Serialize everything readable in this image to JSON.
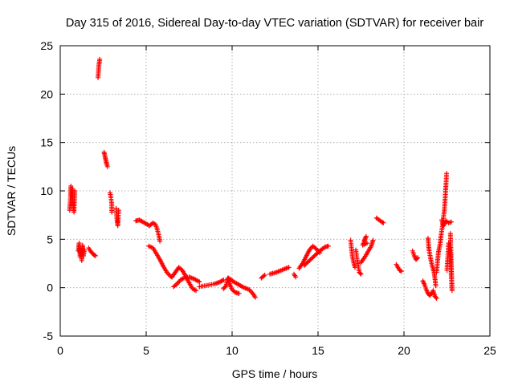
{
  "chart_data": {
    "type": "scatter",
    "title": "Day 315 of 2016, Sidereal Day-to-day VTEC variation (SDTVAR) for receiver bair",
    "xlabel": "GPS time / hours",
    "ylabel": "SDTVAR / TECUs",
    "xlim": [
      0,
      25
    ],
    "ylim": [
      -5,
      25
    ],
    "xticks": [
      "0",
      "5",
      "10",
      "15",
      "20",
      "25"
    ],
    "yticks": [
      "-5",
      "0",
      "5",
      "10",
      "15",
      "20",
      "25"
    ],
    "grid": true,
    "marker": "plus",
    "series": [
      {
        "name": "SDTVAR",
        "color": "#ff0000",
        "segments": [
          [
            [
              0.55,
              8.0
            ],
            [
              0.6,
              9.5
            ],
            [
              0.62,
              10.5
            ],
            [
              0.65,
              10.0
            ],
            [
              0.68,
              9.0
            ],
            [
              0.72,
              10.2
            ],
            [
              0.75,
              8.6
            ],
            [
              0.8,
              7.8
            ],
            [
              0.85,
              10.0
            ]
          ],
          [
            [
              1.05,
              3.8
            ],
            [
              1.1,
              4.6
            ],
            [
              1.15,
              3.2
            ],
            [
              1.2,
              4.0
            ],
            [
              1.25,
              2.8
            ],
            [
              1.3,
              4.4
            ],
            [
              1.35,
              3.3
            ],
            [
              1.4,
              3.9
            ]
          ],
          [
            [
              1.65,
              4.1
            ],
            [
              1.75,
              3.8
            ],
            [
              1.85,
              3.6
            ],
            [
              1.95,
              3.4
            ],
            [
              2.05,
              3.3
            ]
          ],
          [
            [
              2.2,
              21.7
            ],
            [
              2.25,
              23.0
            ],
            [
              2.3,
              23.6
            ]
          ],
          [
            [
              2.55,
              14.0
            ],
            [
              2.6,
              13.6
            ],
            [
              2.65,
              13.2
            ],
            [
              2.7,
              12.8
            ],
            [
              2.75,
              12.5
            ]
          ],
          [
            [
              2.9,
              9.8
            ],
            [
              2.95,
              9.3
            ],
            [
              3.0,
              8.6
            ],
            [
              3.0,
              7.8
            ]
          ],
          [
            [
              3.25,
              8.2
            ],
            [
              3.3,
              7.0
            ],
            [
              3.35,
              6.4
            ],
            [
              3.4,
              8.0
            ]
          ],
          [
            [
              4.4,
              6.9
            ],
            [
              4.6,
              7.0
            ],
            [
              4.8,
              6.8
            ],
            [
              5.0,
              6.6
            ],
            [
              5.2,
              6.4
            ],
            [
              5.4,
              6.7
            ],
            [
              5.55,
              6.5
            ],
            [
              5.65,
              6.0
            ],
            [
              5.75,
              5.3
            ],
            [
              5.8,
              4.8
            ]
          ],
          [
            [
              5.15,
              4.3
            ],
            [
              5.4,
              4.1
            ],
            [
              5.6,
              3.5
            ],
            [
              5.8,
              2.9
            ],
            [
              6.0,
              2.2
            ],
            [
              6.2,
              1.6
            ],
            [
              6.4,
              1.2
            ],
            [
              6.5,
              1.1
            ]
          ],
          [
            [
              6.5,
              1.1
            ],
            [
              6.7,
              1.6
            ],
            [
              6.9,
              2.1
            ],
            [
              7.1,
              1.8
            ],
            [
              7.3,
              1.2
            ],
            [
              7.5,
              0.5
            ],
            [
              7.7,
              -0.1
            ],
            [
              7.9,
              -0.3
            ]
          ],
          [
            [
              6.6,
              0.1
            ],
            [
              6.8,
              0.4
            ],
            [
              7.0,
              0.8
            ],
            [
              7.2,
              1.0
            ],
            [
              7.5,
              1.1
            ],
            [
              7.8,
              0.9
            ],
            [
              8.1,
              0.6
            ]
          ],
          [
            [
              8.1,
              0.1
            ],
            [
              8.4,
              0.2
            ],
            [
              8.7,
              0.3
            ],
            [
              9.0,
              0.4
            ],
            [
              9.3,
              0.6
            ],
            [
              9.5,
              0.8
            ]
          ],
          [
            [
              9.5,
              -0.1
            ],
            [
              9.65,
              0.2
            ],
            [
              9.75,
              1.0
            ],
            [
              9.85,
              0.4
            ],
            [
              10.0,
              -0.2
            ],
            [
              10.2,
              -0.5
            ],
            [
              10.4,
              -0.6
            ]
          ],
          [
            [
              9.8,
              1.0
            ],
            [
              10.1,
              0.6
            ],
            [
              10.4,
              0.3
            ],
            [
              10.7,
              0.0
            ],
            [
              11.0,
              -0.2
            ],
            [
              11.2,
              -0.6
            ],
            [
              11.35,
              -1.0
            ]
          ],
          [
            [
              11.7,
              1.0
            ],
            [
              11.9,
              1.3
            ]
          ],
          [
            [
              12.2,
              1.4
            ],
            [
              12.6,
              1.6
            ],
            [
              13.0,
              1.9
            ],
            [
              13.3,
              2.1
            ]
          ],
          [
            [
              13.6,
              1.4
            ],
            [
              13.7,
              1.1
            ]
          ],
          [
            [
              13.9,
              2.0
            ],
            [
              14.1,
              2.5
            ],
            [
              14.3,
              3.2
            ],
            [
              14.5,
              3.9
            ],
            [
              14.7,
              4.3
            ],
            [
              14.9,
              4.0
            ],
            [
              15.1,
              3.6
            ]
          ],
          [
            [
              14.2,
              2.3
            ],
            [
              14.5,
              2.8
            ],
            [
              14.8,
              3.3
            ],
            [
              15.1,
              3.8
            ],
            [
              15.4,
              4.2
            ],
            [
              15.6,
              4.3
            ]
          ],
          [
            [
              16.9,
              4.9
            ],
            [
              16.95,
              4.0
            ],
            [
              17.0,
              3.2
            ],
            [
              17.1,
              2.4
            ],
            [
              17.15,
              2.1
            ]
          ],
          [
            [
              17.2,
              3.9
            ],
            [
              17.25,
              3.2
            ],
            [
              17.4,
              1.6
            ],
            [
              17.5,
              1.4
            ]
          ],
          [
            [
              17.5,
              2.6
            ],
            [
              17.7,
              3.1
            ],
            [
              17.9,
              3.7
            ],
            [
              18.1,
              4.3
            ],
            [
              18.2,
              4.9
            ]
          ],
          [
            [
              17.7,
              4.9
            ],
            [
              17.8,
              5.3
            ],
            [
              17.6,
              4.4
            ],
            [
              17.85,
              4.6
            ]
          ],
          [
            [
              18.4,
              7.2
            ],
            [
              18.55,
              7.0
            ],
            [
              18.7,
              6.8
            ],
            [
              18.8,
              6.7
            ]
          ],
          [
            [
              19.55,
              2.4
            ],
            [
              19.65,
              2.1
            ],
            [
              19.75,
              1.8
            ],
            [
              19.85,
              1.7
            ]
          ],
          [
            [
              20.5,
              3.8
            ],
            [
              20.6,
              3.3
            ],
            [
              20.7,
              2.9
            ],
            [
              20.8,
              3.1
            ]
          ],
          [
            [
              21.1,
              0.7
            ],
            [
              21.2,
              0.3
            ],
            [
              21.3,
              -0.2
            ],
            [
              21.4,
              -0.6
            ],
            [
              21.5,
              -0.8
            ],
            [
              21.6,
              -0.6
            ],
            [
              21.7,
              -0.3
            ],
            [
              21.8,
              -0.9
            ],
            [
              21.9,
              -1.1
            ]
          ],
          [
            [
              21.4,
              5.1
            ],
            [
              21.45,
              4.0
            ],
            [
              21.55,
              3.0
            ],
            [
              21.65,
              2.2
            ],
            [
              21.75,
              1.6
            ],
            [
              21.8,
              1.0
            ],
            [
              21.85,
              0.2
            ]
          ],
          [
            [
              21.9,
              1.6
            ],
            [
              21.95,
              2.6
            ],
            [
              22.0,
              3.6
            ],
            [
              22.1,
              4.5
            ],
            [
              22.15,
              5.3
            ],
            [
              22.25,
              6.5
            ],
            [
              22.35,
              8.0
            ],
            [
              22.4,
              9.3
            ],
            [
              22.45,
              10.8
            ],
            [
              22.48,
              11.8
            ]
          ],
          [
            [
              22.2,
              7.0
            ],
            [
              22.3,
              6.4
            ],
            [
              22.45,
              6.9
            ],
            [
              22.6,
              6.7
            ],
            [
              22.75,
              6.8
            ]
          ],
          [
            [
              22.5,
              1.8
            ],
            [
              22.6,
              4.6
            ],
            [
              22.7,
              3.4
            ],
            [
              22.75,
              1.3
            ],
            [
              22.8,
              -0.3
            ],
            [
              22.7,
              5.6
            ]
          ]
        ]
      }
    ]
  }
}
